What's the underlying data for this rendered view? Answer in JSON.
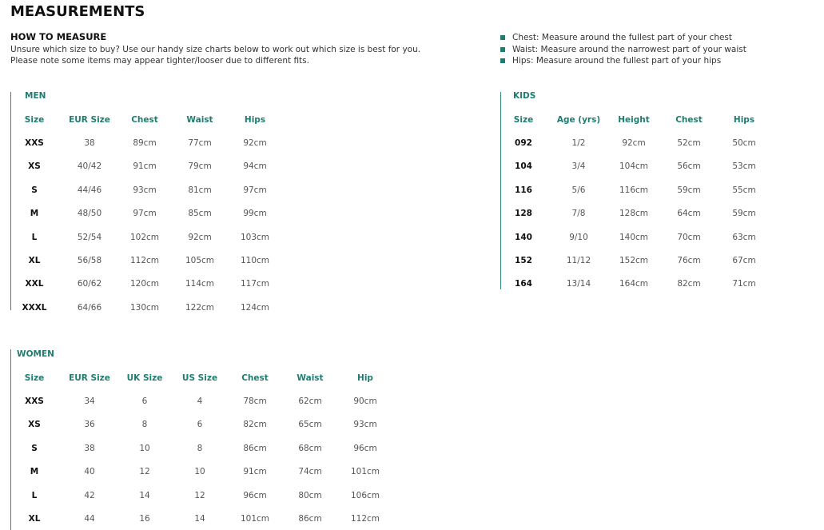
{
  "title": "MEASUREMENTS",
  "how_to": {
    "heading": "HOW TO MEASURE",
    "lines": [
      "Unsure which size to buy? Use our handy size charts below to work out which size is best for you.",
      "Please note some items may appear tighter/looser due to different fits."
    ]
  },
  "tips": [
    "Chest: Measure around the fullest part of your chest",
    "Waist: Measure around the narrowest part of your waist",
    "Hips: Measure around the fullest part of your hips"
  ],
  "tables": [
    {
      "title": "MEN",
      "headers": [
        "Size",
        "EUR Size",
        "Chest",
        "Waist",
        "Hips"
      ],
      "rows": [
        [
          "XXS",
          "38",
          "89cm",
          "77cm",
          "92cm"
        ],
        [
          "XS",
          "40/42",
          "91cm",
          "79cm",
          "94cm"
        ],
        [
          "S",
          "44/46",
          "93cm",
          "81cm",
          "97cm"
        ],
        [
          "M",
          "48/50",
          "97cm",
          "85cm",
          "99cm"
        ],
        [
          "L",
          "52/54",
          "102cm",
          "92cm",
          "103cm"
        ],
        [
          "XL",
          "56/58",
          "112cm",
          "105cm",
          "110cm"
        ],
        [
          "XXL",
          "60/62",
          "120cm",
          "114cm",
          "117cm"
        ],
        [
          "XXXL",
          "64/66",
          "130cm",
          "122cm",
          "124cm"
        ]
      ]
    },
    {
      "title": "KIDS",
      "headers": [
        "Size",
        "Age (yrs)",
        "Height",
        "Chest",
        "Hips"
      ],
      "rows": [
        [
          "092",
          "1/2",
          "92cm",
          "52cm",
          "50cm"
        ],
        [
          "104",
          "3/4",
          "104cm",
          "56cm",
          "53cm"
        ],
        [
          "116",
          "5/6",
          "116cm",
          "59cm",
          "55cm"
        ],
        [
          "128",
          "7/8",
          "128cm",
          "64cm",
          "59cm"
        ],
        [
          "140",
          "9/10",
          "140cm",
          "70cm",
          "63cm"
        ],
        [
          "152",
          "11/12",
          "152cm",
          "76cm",
          "67cm"
        ],
        [
          "164",
          "13/14",
          "164cm",
          "82cm",
          "71cm"
        ]
      ]
    },
    {
      "title": "WOMEN",
      "headers": [
        "Size",
        "EUR Size",
        "UK Size",
        "US Size",
        "Chest",
        "Waist",
        "Hip"
      ],
      "rows": [
        [
          "XXS",
          "34",
          "6",
          "4",
          "78cm",
          "62cm",
          "90cm"
        ],
        [
          "XS",
          "36",
          "8",
          "6",
          "82cm",
          "65cm",
          "93cm"
        ],
        [
          "S",
          "38",
          "10",
          "8",
          "86cm",
          "68cm",
          "96cm"
        ],
        [
          "M",
          "40",
          "12",
          "10",
          "91cm",
          "74cm",
          "101cm"
        ],
        [
          "L",
          "42",
          "14",
          "12",
          "96cm",
          "80cm",
          "106cm"
        ],
        [
          "XL",
          "44",
          "16",
          "14",
          "101cm",
          "86cm",
          "112cm"
        ]
      ]
    }
  ]
}
